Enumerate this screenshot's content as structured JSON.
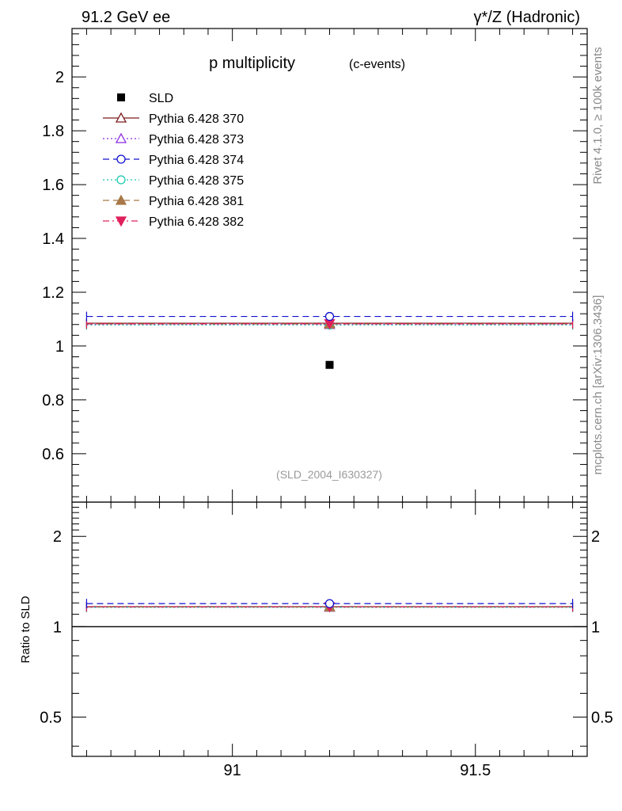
{
  "header": {
    "left": "91.2 GeV ee",
    "right": "γ*/Z (Hadronic)"
  },
  "side_labels": {
    "rivet": "Rivet 4.1.0, ≥ 100k events",
    "mcplots": "mcplots.cern.ch [arXiv:1306.3436]"
  },
  "chart_data": {
    "type": "scatter",
    "title": "p multiplicity",
    "subtitle": "(c-events)",
    "watermark": "(SLD_2004_I630327)",
    "xlim": [
      90.67,
      91.73
    ],
    "x_ticks": [
      91,
      91.5
    ],
    "x_tick_labels": [
      "91",
      "91.5"
    ],
    "bin": [
      90.7,
      91.7
    ],
    "x_center": 91.2,
    "main": {
      "ylim": [
        0.42,
        2.18
      ],
      "y_ticks": [
        0.6,
        0.8,
        1,
        1.2,
        1.4,
        1.6,
        1.8,
        2
      ],
      "y_tick_labels": [
        "0.6",
        "0.8",
        "1",
        "1.2",
        "1.4",
        "1.6",
        "1.8",
        "2"
      ]
    },
    "ratio": {
      "ylabel": "Ratio to SLD",
      "log_scale": true,
      "ylim": [
        0.37,
        2.6
      ],
      "y_ticks": [
        0.5,
        1,
        2
      ],
      "y_tick_labels": [
        "0.5",
        "1",
        "2"
      ],
      "reference": 1
    },
    "data": {
      "name": "SLD",
      "value": 0.93,
      "color": "#000000"
    },
    "series": [
      {
        "name": "Pythia 6.428 370",
        "value": 1.085,
        "ratio": 1.166,
        "color": "#7a1a1a",
        "dash": "",
        "marker": "triangle-open"
      },
      {
        "name": "Pythia 6.428 373",
        "value": 1.08,
        "ratio": 1.161,
        "color": "#8a2be2",
        "dash": "2,3",
        "marker": "triangle-open"
      },
      {
        "name": "Pythia 6.428 374",
        "value": 1.11,
        "ratio": 1.194,
        "color": "#1010d0",
        "dash": "8,5",
        "marker": "circle-open"
      },
      {
        "name": "Pythia 6.428 375",
        "value": 1.078,
        "ratio": 1.159,
        "color": "#1ac8b0",
        "dash": "2,3",
        "marker": "circle-open"
      },
      {
        "name": "Pythia 6.428 381",
        "value": 1.082,
        "ratio": 1.163,
        "color": "#a87848",
        "dash": "8,5",
        "marker": "triangle-filled"
      },
      {
        "name": "Pythia 6.428 382",
        "value": 1.083,
        "ratio": 1.165,
        "color": "#e0205a",
        "dash": "8,4,2,4",
        "marker": "triangle-down-filled"
      }
    ]
  }
}
